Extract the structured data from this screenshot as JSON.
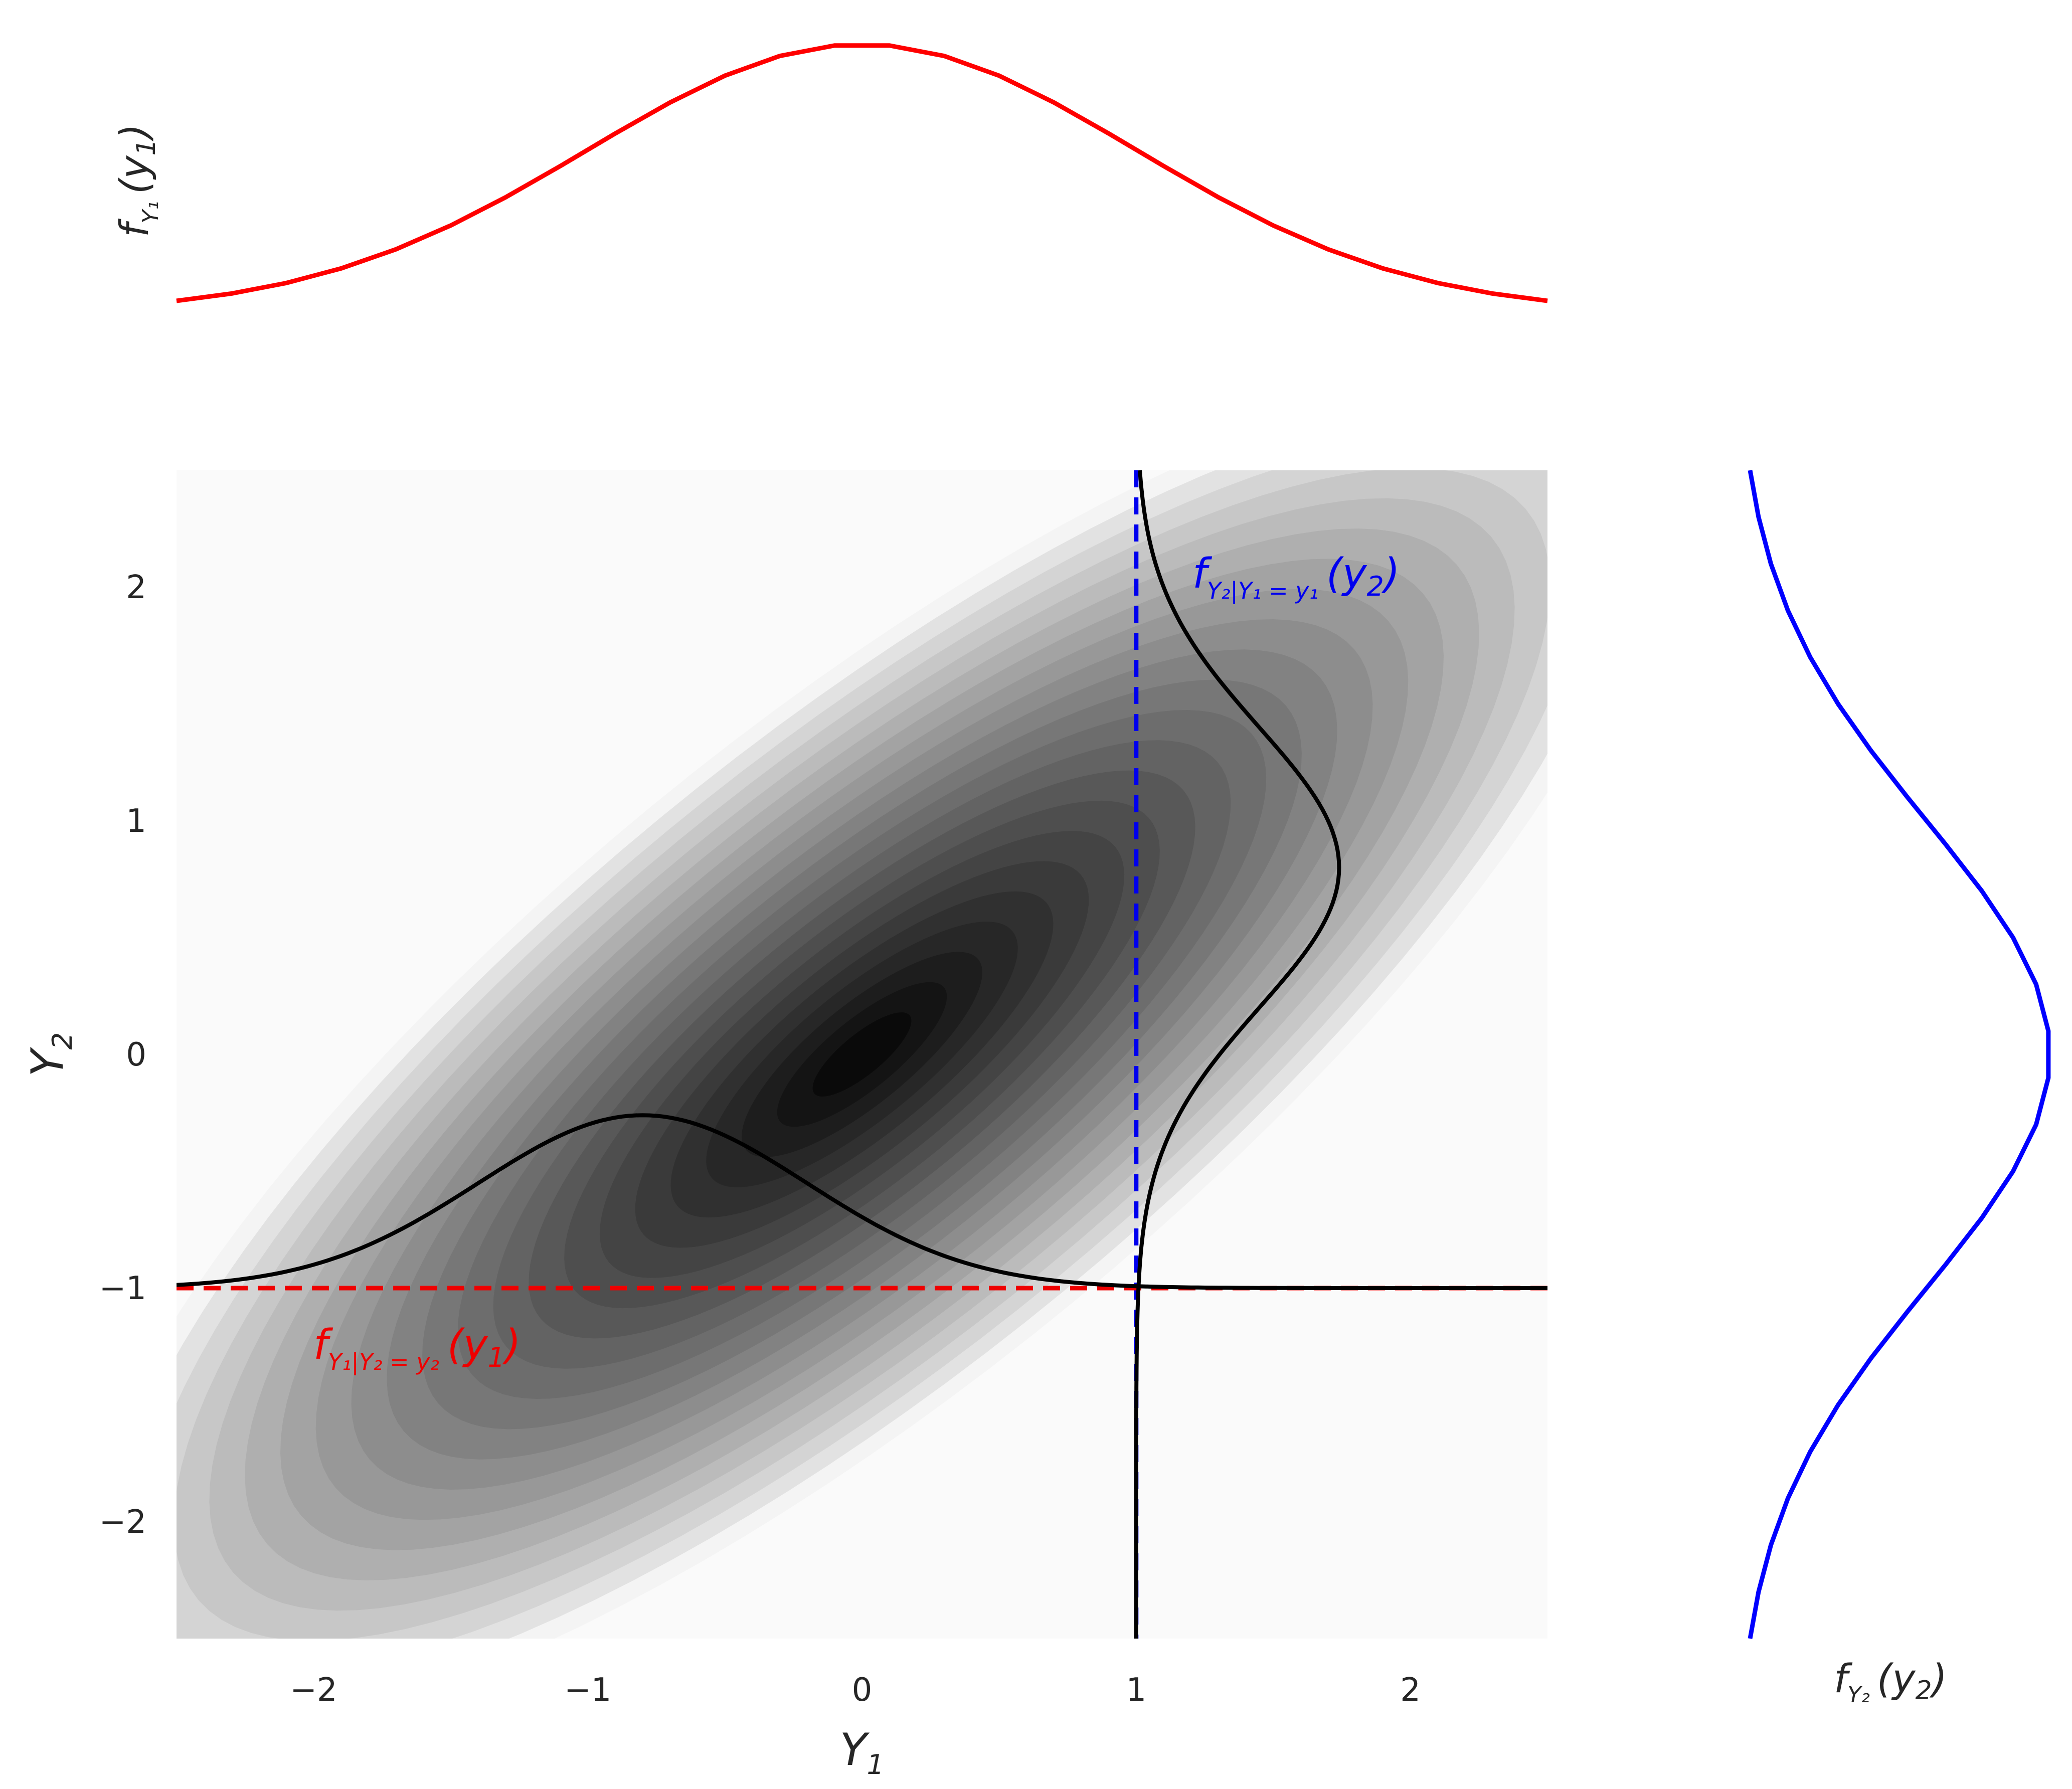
{
  "chart_data": {
    "type": "joint-density",
    "joint": {
      "type": "contour",
      "distribution": "bivariate normal",
      "mean": [
        0,
        0
      ],
      "std": [
        1,
        1
      ],
      "correlation": 0.8,
      "colormap": "white-to-black (Greys)",
      "xlim": [
        -2.5,
        2.5
      ],
      "ylim": [
        -2.5,
        2.5
      ],
      "xticks": [
        "−2",
        "−1",
        "0",
        "1",
        "2"
      ],
      "yticks": [
        "−2",
        "−1",
        "0",
        "1",
        "2"
      ],
      "xtick_values": [
        -2,
        -1,
        0,
        1,
        2
      ],
      "ytick_values": [
        -2,
        -1,
        0,
        1,
        2
      ],
      "xlabel": "Y",
      "xlabel_sub": "1",
      "ylabel": "Y",
      "ylabel_sub": "2",
      "grid": false
    },
    "conditioning": {
      "y1": 1,
      "y2": -1
    },
    "annotations": {
      "conditional_y2": {
        "f": "f",
        "sub": "Y₂|Y₁ = y₁",
        "arg": "(y",
        "arg_sub": "2",
        "close": ")",
        "color": "#0000ee"
      },
      "conditional_y1": {
        "f": "f",
        "sub": "Y₁|Y₂ = y₂",
        "arg": "(y",
        "arg_sub": "1",
        "close": ")",
        "color": "#ee0000"
      }
    },
    "marginal_top": {
      "type": "line",
      "label_f": "f",
      "label_sub": "Y₁",
      "label_arg": "(y",
      "label_arg_sub": "1",
      "label_close": ")",
      "color": "#ff0000",
      "xlim": [
        -2.5,
        2.5
      ]
    },
    "marginal_right": {
      "type": "line",
      "label_f": "f",
      "label_sub": "Y₂",
      "label_arg": "(y",
      "label_arg_sub": "2",
      "label_close": ")",
      "color": "#0000ff",
      "ylim": [
        -2.5,
        2.5
      ]
    }
  }
}
